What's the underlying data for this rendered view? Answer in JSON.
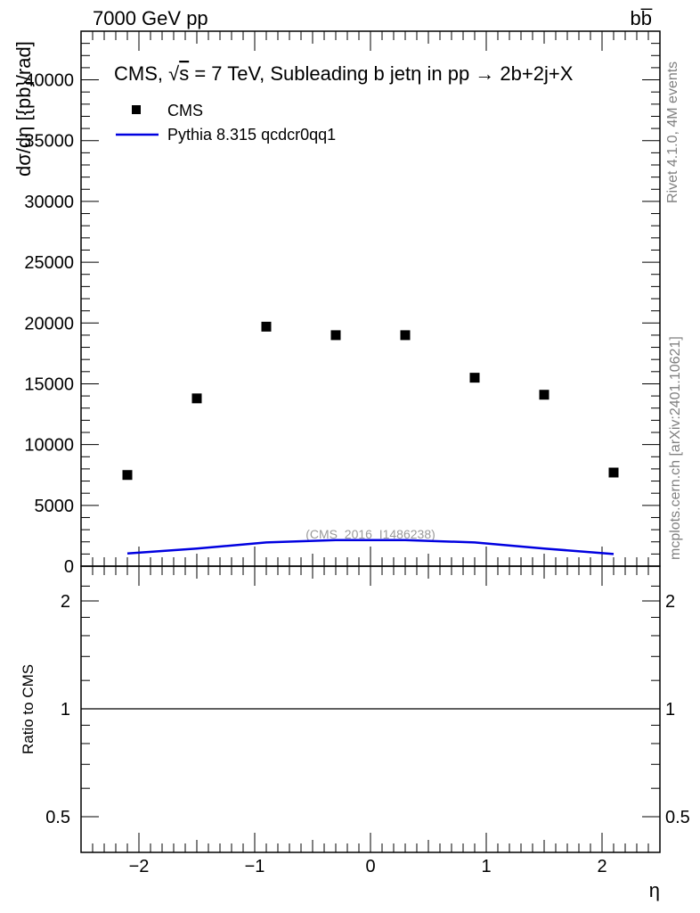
{
  "header": {
    "energy_label": "7000 GeV pp",
    "process_label": "bb̅"
  },
  "side_text": {
    "rivet": "Rivet 4.1.0,  4M events",
    "mcplots": "mcplots.cern.ch [arXiv:2401.10621]"
  },
  "watermark": "(CMS_2016_I1486238)",
  "chart_data": [
    {
      "type": "scatter",
      "title": "CMS, √s = 7 TeV, Subleading b jetη in pp →  2b+2j+X",
      "title_parts": {
        "prefix": "CMS, ",
        "sqrt": "√",
        "s": "s",
        "rest": " = 7 TeV, Subleading b jetη in pp →  2b+2j+X"
      },
      "xlabel": "η",
      "ylabel": "dσ/dη [{pb}/rad]",
      "xlim": [
        -2.5,
        2.5
      ],
      "ylim": [
        0,
        44000
      ],
      "yticks": [
        0,
        5000,
        10000,
        15000,
        20000,
        25000,
        30000,
        35000,
        40000
      ],
      "ytick_labels": [
        "0",
        "5000",
        "10000",
        "15000",
        "20000",
        "25000",
        "30000",
        "35000",
        "40000"
      ],
      "legend_position": "top-left",
      "series": [
        {
          "name": "CMS",
          "style": "marker",
          "color": "#000000",
          "x": [
            -2.1,
            -1.5,
            -0.9,
            -0.3,
            0.3,
            0.9,
            1.5,
            2.1
          ],
          "y": [
            7500,
            13800,
            19700,
            19000,
            19000,
            15500,
            14100,
            7700
          ]
        },
        {
          "name": "Pythia 8.315 qcdcr0qq1",
          "style": "line",
          "color": "#0000e0",
          "x": [
            -2.1,
            -1.5,
            -0.9,
            -0.3,
            0.3,
            0.9,
            1.5,
            2.1
          ],
          "y": [
            1050,
            1450,
            1950,
            2150,
            2150,
            1950,
            1450,
            1000
          ]
        }
      ]
    },
    {
      "type": "line",
      "xlabel": "η",
      "ylabel": "Ratio to CMS",
      "xlim": [
        -2.5,
        2.5
      ],
      "ylim": [
        0.4,
        2.3
      ],
      "yscale": "log",
      "ytick_labels": [
        "0.5",
        "1",
        "2"
      ],
      "ytick_values": [
        0.5,
        1,
        2
      ],
      "xtick_labels": [
        "−2",
        "−1",
        "0",
        "1",
        "2"
      ],
      "xtick_values": [
        -2,
        -1,
        0,
        1,
        2
      ],
      "reference_line": 1
    }
  ]
}
